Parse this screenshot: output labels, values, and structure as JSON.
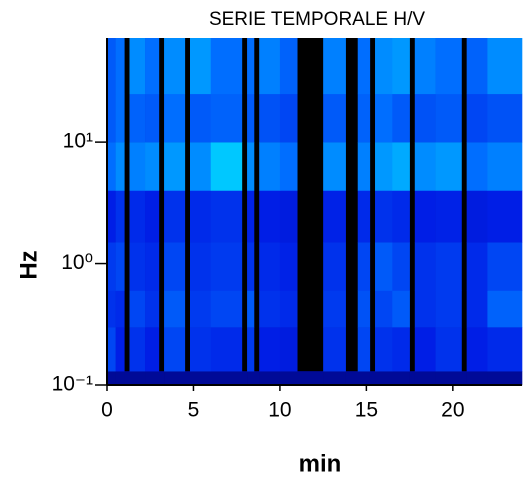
{
  "chart_data": {
    "type": "heatmap",
    "title": "SERIE TEMPORALE H/V",
    "xlabel": "min",
    "ylabel": "Hz",
    "colormap": "jet",
    "log_y": true,
    "xlim": [
      0,
      24
    ],
    "ylim": [
      0.1,
      72
    ],
    "xticks": [
      0,
      5,
      10,
      15,
      20
    ],
    "yticks": [
      {
        "value": 0.1,
        "label": "10⁻¹"
      },
      {
        "value": 1,
        "label": "10⁰"
      },
      {
        "value": 10,
        "label": "10¹"
      }
    ],
    "x_bins": [
      0,
      0.5,
      1,
      1.3,
      2.2,
      3,
      3.3,
      4.5,
      4.8,
      6,
      7.8,
      8.1,
      8.5,
      8.8,
      10,
      11,
      12.5,
      13.8,
      14.5,
      15.2,
      15.5,
      16.5,
      17.5,
      17.8,
      19,
      20.5,
      20.8,
      22,
      24
    ],
    "y_bins": [
      0.1,
      0.13,
      0.3,
      0.6,
      1.5,
      4,
      10,
      25,
      72
    ],
    "z": [
      [
        0.12,
        0.12,
        0.12,
        0.12,
        0.12,
        0.12,
        0.12,
        0.12,
        0.12,
        0.12,
        0.12,
        0.12,
        0.12,
        0.12,
        0.12,
        0.12,
        0.12,
        0.12,
        0.12,
        0.12,
        0.12,
        0.12,
        0.12,
        0.12,
        0.12,
        0.12,
        0.12,
        0.12
      ],
      [
        0.45,
        0.35,
        null,
        0.4,
        0.35,
        null,
        0.45,
        null,
        0.4,
        0.38,
        null,
        0.42,
        null,
        0.35,
        0.33,
        null,
        0.4,
        null,
        0.45,
        null,
        0.4,
        0.38,
        null,
        0.35,
        0.4,
        null,
        0.35,
        0.38
      ],
      [
        0.4,
        0.38,
        null,
        0.45,
        0.4,
        null,
        0.5,
        null,
        0.42,
        0.45,
        null,
        0.5,
        null,
        0.4,
        0.38,
        null,
        0.42,
        null,
        0.48,
        null,
        0.45,
        0.5,
        null,
        0.4,
        0.42,
        null,
        0.38,
        0.52
      ],
      [
        0.42,
        0.45,
        null,
        0.4,
        0.38,
        null,
        0.45,
        null,
        0.4,
        0.42,
        null,
        0.4,
        null,
        0.38,
        0.36,
        null,
        0.4,
        null,
        0.45,
        null,
        0.5,
        0.45,
        null,
        0.4,
        0.42,
        null,
        0.38,
        0.45
      ],
      [
        0.35,
        0.4,
        null,
        0.38,
        0.35,
        null,
        0.4,
        null,
        0.38,
        0.4,
        null,
        0.36,
        null,
        0.35,
        0.33,
        null,
        0.36,
        null,
        0.38,
        null,
        0.4,
        0.38,
        null,
        0.35,
        0.36,
        null,
        0.33,
        0.35
      ],
      [
        0.55,
        0.6,
        null,
        0.58,
        0.6,
        null,
        0.62,
        null,
        0.6,
        0.7,
        null,
        0.6,
        null,
        0.58,
        0.55,
        null,
        0.6,
        null,
        0.58,
        null,
        0.62,
        0.65,
        null,
        0.6,
        0.62,
        null,
        0.55,
        0.58
      ],
      [
        0.5,
        0.55,
        null,
        0.52,
        0.5,
        null,
        0.55,
        null,
        0.5,
        0.52,
        null,
        0.5,
        null,
        0.48,
        0.45,
        null,
        0.5,
        null,
        0.52,
        null,
        0.55,
        0.5,
        null,
        0.48,
        0.5,
        null,
        0.45,
        0.48
      ],
      [
        0.5,
        0.55,
        null,
        0.6,
        0.55,
        null,
        0.6,
        null,
        0.62,
        0.55,
        null,
        0.55,
        null,
        0.58,
        0.52,
        null,
        0.58,
        null,
        0.55,
        null,
        0.6,
        0.62,
        null,
        0.58,
        0.55,
        null,
        0.52,
        0.6
      ]
    ]
  }
}
